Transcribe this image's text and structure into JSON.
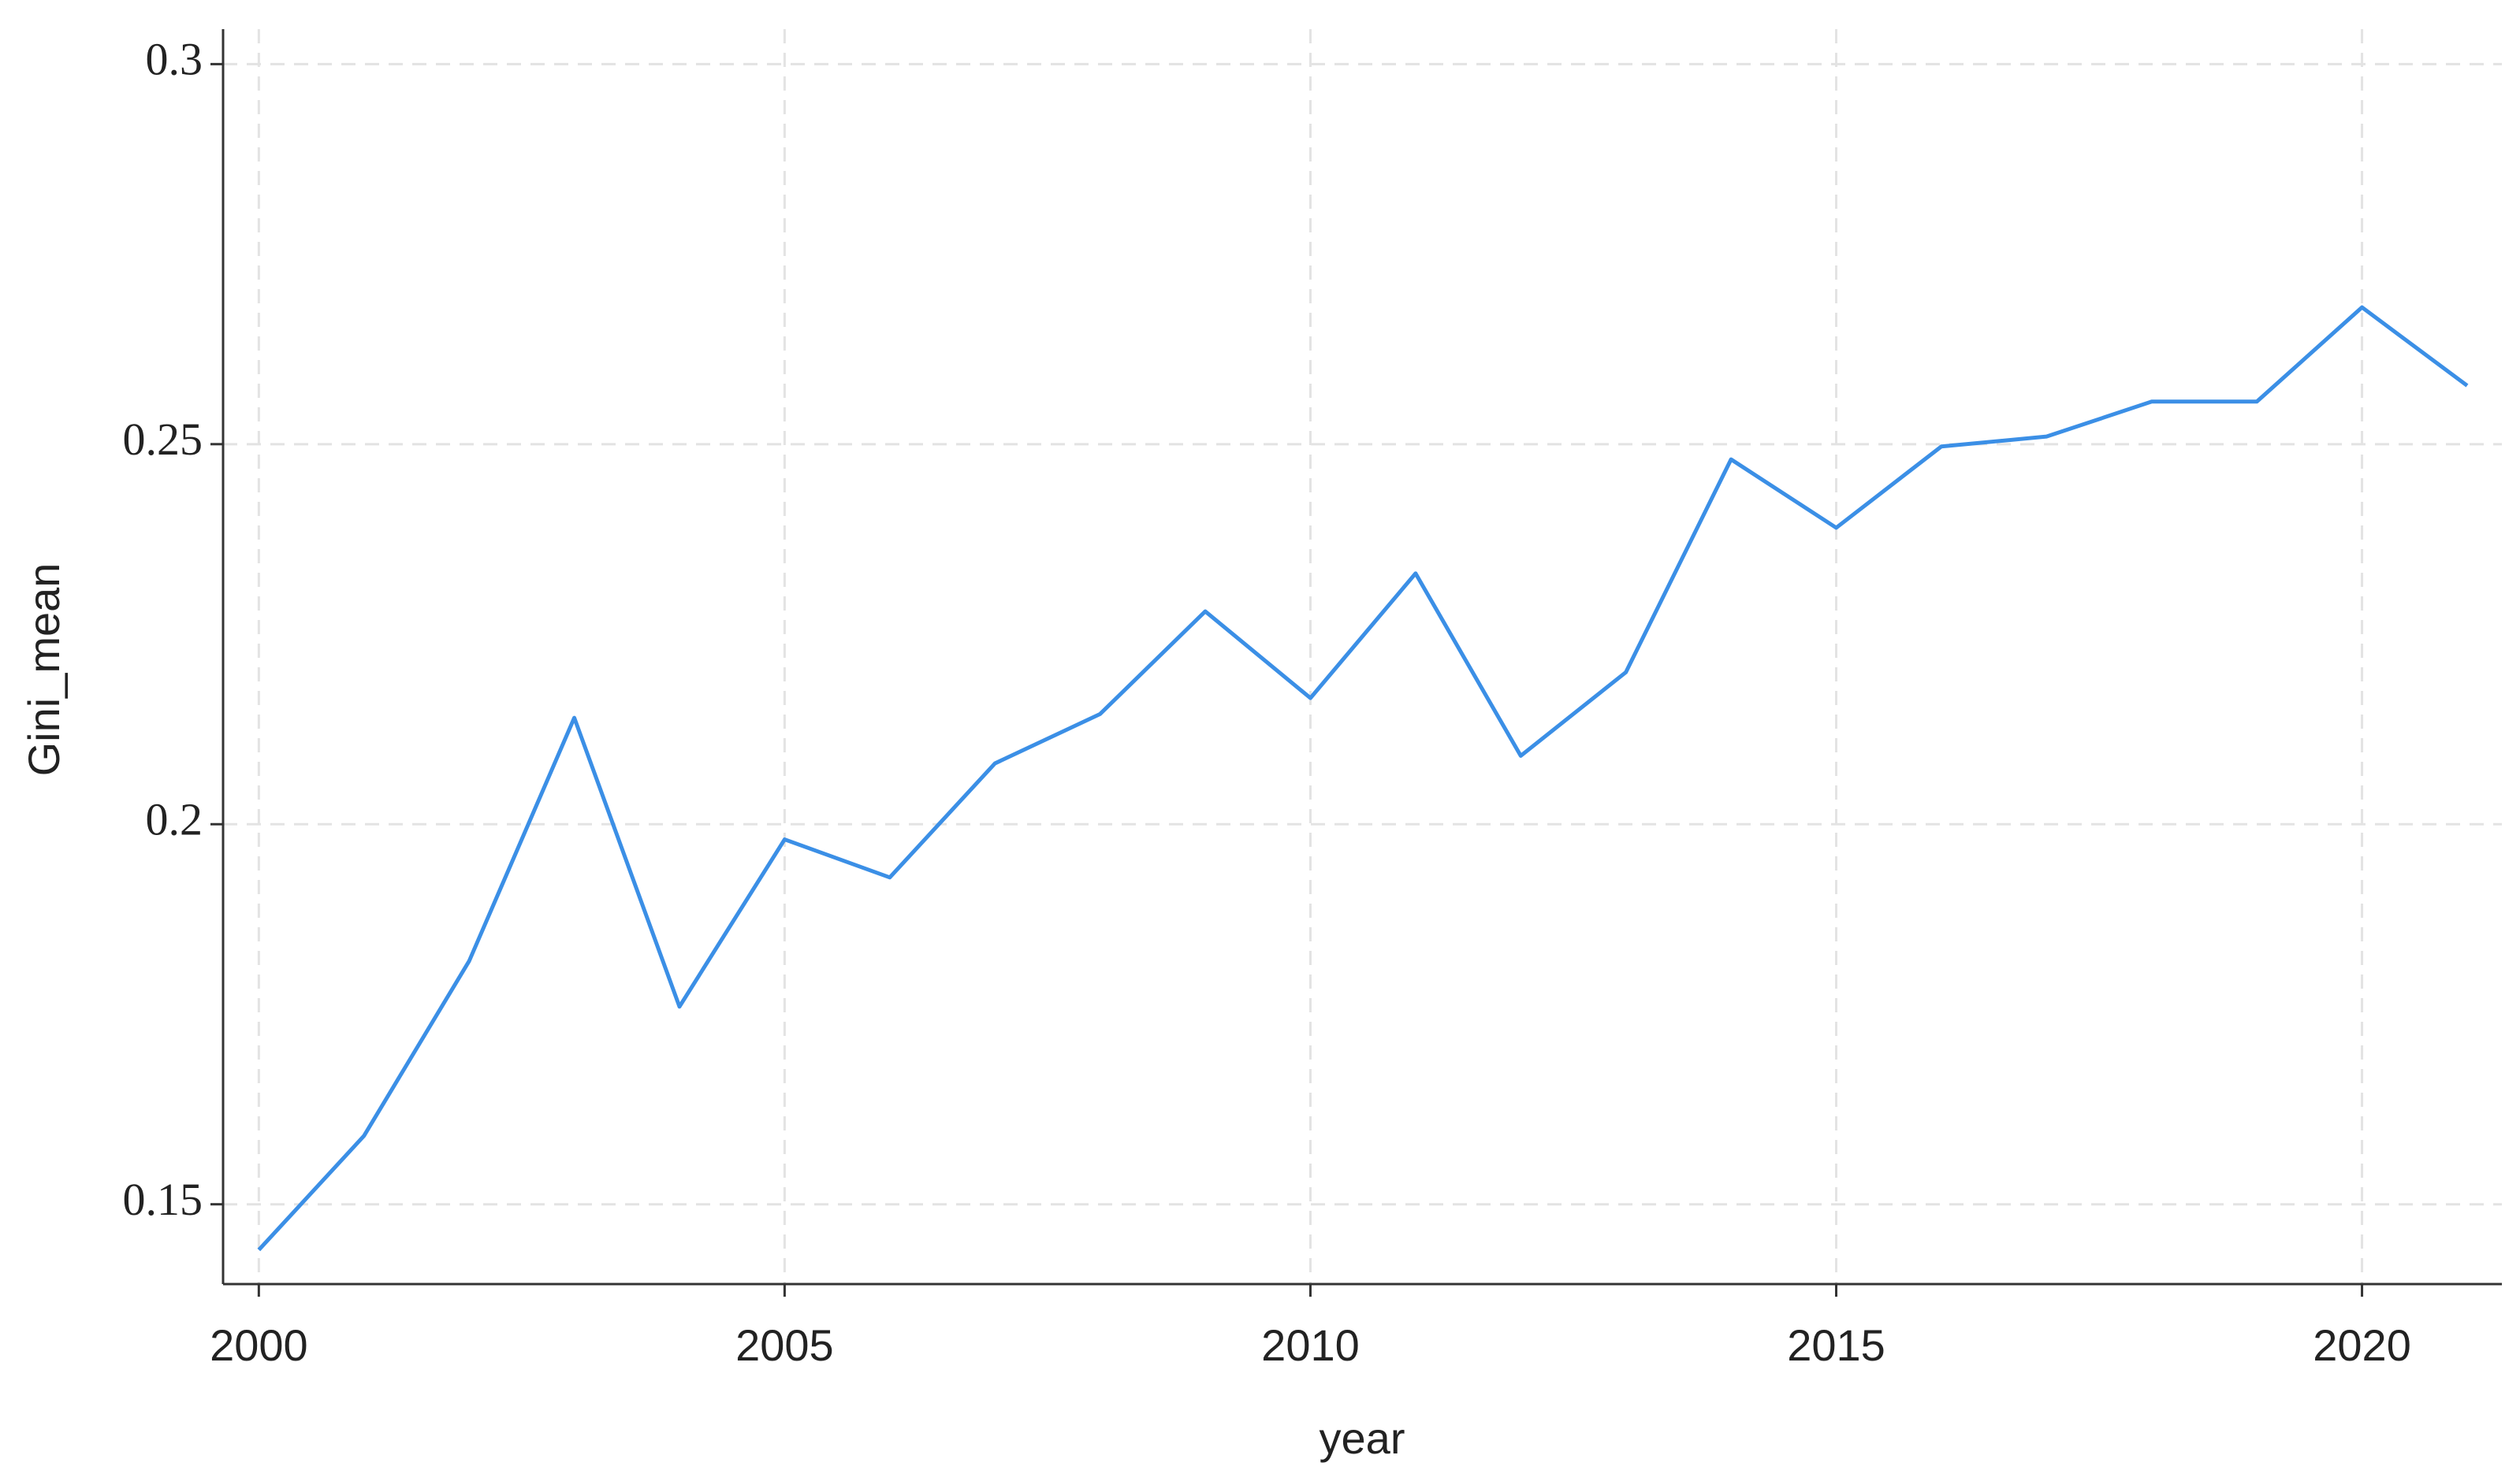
{
  "chart_data": {
    "type": "line",
    "x_label": "year",
    "y_label": "Gini_mean",
    "x": [
      2000,
      2001,
      2002,
      2003,
      2004,
      2005,
      2006,
      2007,
      2008,
      2009,
      2010,
      2011,
      2012,
      2013,
      2014,
      2015,
      2016,
      2017,
      2018,
      2019,
      2020,
      2021
    ],
    "series": [
      {
        "name": "Gini_mean",
        "color": "#3b8fe6",
        "values": [
          0.144,
          0.159,
          0.182,
          0.214,
          0.176,
          0.198,
          0.193,
          0.208,
          0.2145,
          0.228,
          0.2166,
          0.233,
          0.209,
          0.22,
          0.248,
          0.239,
          0.2497,
          0.251,
          0.2556,
          0.2556,
          0.268,
          0.2577
        ]
      }
    ],
    "xlim": [
      1999.66,
      2021.33
    ],
    "xticks": [
      2000,
      2005,
      2010,
      2015,
      2020
    ],
    "ylim": [
      0.1395,
      0.3046
    ],
    "yticks": [
      0.15,
      0.2,
      0.25,
      0.3
    ],
    "grid": true
  }
}
